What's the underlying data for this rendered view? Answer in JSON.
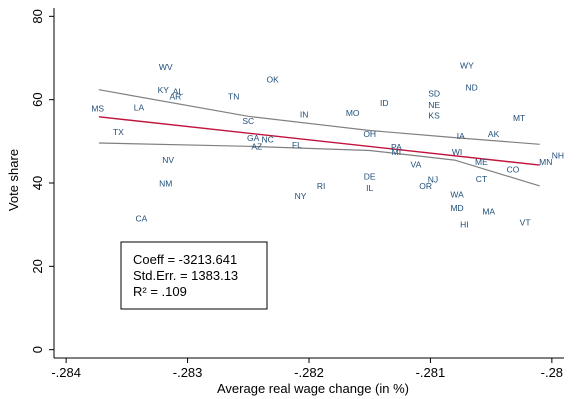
{
  "chart_data": {
    "type": "scatter",
    "title": "",
    "xlabel": "Average real wage change (in %)",
    "ylabel": "Vote share",
    "xlim": [
      -0.2841,
      -0.2799
    ],
    "ylim": [
      -2,
      82
    ],
    "x_ticks": [
      -0.284,
      -0.283,
      -0.282,
      -0.281,
      -0.28
    ],
    "x_tick_labels": [
      "-.284",
      "-.283",
      "-.282",
      "-.281",
      "-.28"
    ],
    "y_ticks": [
      0,
      20,
      40,
      60,
      80
    ],
    "y_tick_labels": [
      "0",
      "20",
      "40",
      "60",
      "80"
    ],
    "grid": false,
    "colors": {
      "points": "#1f4e79",
      "fit_line": "#c0143c",
      "ci_lines": "#808080",
      "axis": "#000000"
    },
    "points": [
      {
        "label": "WV",
        "x": -0.28318,
        "y": 67.8
      },
      {
        "label": "KY",
        "x": -0.2832,
        "y": 62.3
      },
      {
        "label": "AL",
        "x": -0.28308,
        "y": 62.0
      },
      {
        "label": "AR",
        "x": -0.2831,
        "y": 60.8
      },
      {
        "label": "OK",
        "x": -0.2823,
        "y": 64.9
      },
      {
        "label": "TN",
        "x": -0.28262,
        "y": 60.8
      },
      {
        "label": "MS",
        "x": -0.28374,
        "y": 57.9
      },
      {
        "label": "LA",
        "x": -0.2834,
        "y": 58.1
      },
      {
        "label": "TX",
        "x": -0.28357,
        "y": 52.2
      },
      {
        "label": "SC",
        "x": -0.2825,
        "y": 54.9
      },
      {
        "label": "IN",
        "x": -0.28204,
        "y": 56.5
      },
      {
        "label": "MO",
        "x": -0.28164,
        "y": 56.8
      },
      {
        "label": "ID",
        "x": -0.28138,
        "y": 59.2
      },
      {
        "label": "WY",
        "x": -0.2807,
        "y": 68.2
      },
      {
        "label": "ND",
        "x": -0.28066,
        "y": 62.9
      },
      {
        "label": "SD",
        "x": -0.28097,
        "y": 61.5
      },
      {
        "label": "NE",
        "x": -0.28097,
        "y": 58.7
      },
      {
        "label": "KS",
        "x": -0.28097,
        "y": 56.2
      },
      {
        "label": "MT",
        "x": -0.28027,
        "y": 55.6
      },
      {
        "label": "GA",
        "x": -0.28246,
        "y": 50.8
      },
      {
        "label": "NC",
        "x": -0.28234,
        "y": 50.5
      },
      {
        "label": "AZ",
        "x": -0.28243,
        "y": 48.7
      },
      {
        "label": "FL",
        "x": -0.2821,
        "y": 49.1
      },
      {
        "label": "OH",
        "x": -0.2815,
        "y": 51.7
      },
      {
        "label": "PA",
        "x": -0.28128,
        "y": 48.6
      },
      {
        "label": "MI",
        "x": -0.28128,
        "y": 47.5
      },
      {
        "label": "IA",
        "x": -0.28075,
        "y": 51.3
      },
      {
        "label": "AK",
        "x": -0.28048,
        "y": 51.8
      },
      {
        "label": "WI",
        "x": -0.28078,
        "y": 47.5
      },
      {
        "label": "ME",
        "x": -0.28058,
        "y": 45.0
      },
      {
        "label": "NH",
        "x": -0.27995,
        "y": 46.6
      },
      {
        "label": "MN",
        "x": -0.28005,
        "y": 45.0
      },
      {
        "label": "CO",
        "x": -0.28032,
        "y": 43.3
      },
      {
        "label": "VA",
        "x": -0.28112,
        "y": 44.4
      },
      {
        "label": "NV",
        "x": -0.28316,
        "y": 45.5
      },
      {
        "label": "NM",
        "x": -0.28318,
        "y": 39.9
      },
      {
        "label": "DE",
        "x": -0.2815,
        "y": 41.6
      },
      {
        "label": "IL",
        "x": -0.2815,
        "y": 38.8
      },
      {
        "label": "NJ",
        "x": -0.28098,
        "y": 40.8
      },
      {
        "label": "OR",
        "x": -0.28104,
        "y": 39.3
      },
      {
        "label": "CT",
        "x": -0.28058,
        "y": 41.0
      },
      {
        "label": "RI",
        "x": -0.2819,
        "y": 39.3
      },
      {
        "label": "NY",
        "x": -0.28207,
        "y": 36.9
      },
      {
        "label": "WA",
        "x": -0.28078,
        "y": 37.3
      },
      {
        "label": "MD",
        "x": -0.28078,
        "y": 34.0
      },
      {
        "label": "MA",
        "x": -0.28052,
        "y": 33.2
      },
      {
        "label": "VT",
        "x": -0.28022,
        "y": 30.5
      },
      {
        "label": "HI",
        "x": -0.28072,
        "y": 30.0
      },
      {
        "label": "CA",
        "x": -0.28338,
        "y": 31.5
      }
    ],
    "fit_line": [
      [
        -0.28373,
        55.9
      ],
      [
        -0.2801,
        44.3
      ]
    ],
    "ci_upper": [
      [
        -0.28373,
        62.4
      ],
      [
        -0.2825,
        56.0
      ],
      [
        -0.2815,
        52.6
      ],
      [
        -0.2808,
        50.9
      ],
      [
        -0.2801,
        49.3
      ]
    ],
    "ci_lower": [
      [
        -0.28373,
        49.6
      ],
      [
        -0.2825,
        48.8
      ],
      [
        -0.2815,
        47.8
      ],
      [
        -0.2808,
        45.5
      ],
      [
        -0.2801,
        39.3
      ]
    ],
    "annotation": {
      "coeff": "Coeff = -3213.641",
      "stderr": "Std.Err. = 1383.13",
      "r2": "R² = .109"
    }
  }
}
